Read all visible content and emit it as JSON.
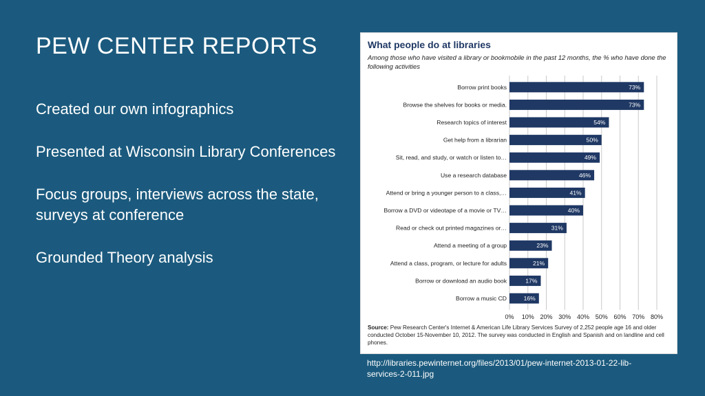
{
  "slide": {
    "title": "PEW CENTER REPORTS",
    "bullets": [
      "Created our own infographics",
      "Presented at Wisconsin Library Conferences",
      "Focus groups, interviews across the state, surveys at conference",
      "Grounded Theory analysis"
    ],
    "source_url": "http://libraries.pewinternet.org/files/2013/01/pew-internet-2013-01-22-lib-services-2-011.jpg"
  },
  "chart_data": {
    "type": "bar",
    "orientation": "horizontal",
    "title": "What people do at libraries",
    "subtitle": "Among those who have visited a library or bookmobile in the past 12 months, the % who have done the following activities",
    "categories": [
      "Borrow print books",
      "Browse the shelves for books or media.",
      "Research topics of interest",
      "Get help from a librarian",
      "Sit, read, and study, or watch or listen to…",
      "Use a research database",
      "Attend or bring a younger person to a class,…",
      "Borrow a DVD or videotape of a movie or TV…",
      "Read or check out printed magazines  or…",
      "Attend a meeting of a group",
      "Attend a class, program, or lecture for adults",
      "Borrow or download an audio book",
      "Borrow a music CD"
    ],
    "values": [
      73,
      73,
      54,
      50,
      49,
      46,
      41,
      40,
      31,
      23,
      21,
      17,
      16
    ],
    "value_labels": [
      "73%",
      "73%",
      "54%",
      "50%",
      "49%",
      "46%",
      "41%",
      "40%",
      "31%",
      "23%",
      "21%",
      "17%",
      "16%"
    ],
    "xlim": [
      0,
      80
    ],
    "x_ticks": [
      "0%",
      "10%",
      "20%",
      "30%",
      "40%",
      "50%",
      "60%",
      "70%",
      "80%"
    ],
    "grid": true,
    "bar_color": "#1f3864",
    "source_label": "Source:",
    "source_text": "Pew Research Center's Internet & American Life Library Services Survey of 2,252 people age 16 and older conducted October 15-November 10, 2012. The survey was conducted in English and Spanish and on landline and cell phones."
  }
}
